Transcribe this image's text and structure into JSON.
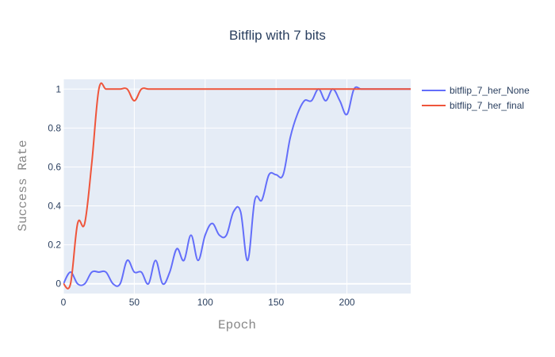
{
  "chart_data": {
    "type": "line",
    "title": "Bitflip with 7 bits",
    "xlabel": "Epoch",
    "ylabel": "Success Rate",
    "xlim": [
      0,
      245
    ],
    "ylim": [
      -0.05,
      1.05
    ],
    "x_ticks": [
      0,
      50,
      100,
      150,
      200
    ],
    "x_tick_labels": [
      "0",
      "50",
      "100",
      "150",
      "200"
    ],
    "y_ticks": [
      0,
      0.2,
      0.4,
      0.6,
      0.8,
      1
    ],
    "y_tick_labels": [
      "0",
      "0.2",
      "0.4",
      "0.6",
      "0.8",
      "1"
    ],
    "grid": true,
    "legend_position": "right",
    "colors": {
      "plot_bg": "#e5ecf6",
      "grid": "#ffffff",
      "text": "#2a3f5f"
    },
    "series": [
      {
        "name": "bitflip_7_her_None",
        "color": "#636efa",
        "x": [
          0,
          5,
          10,
          15,
          20,
          25,
          30,
          35,
          40,
          45,
          50,
          55,
          60,
          65,
          70,
          75,
          80,
          85,
          90,
          95,
          100,
          105,
          110,
          115,
          120,
          125,
          130,
          135,
          140,
          145,
          150,
          155,
          160,
          165,
          170,
          175,
          180,
          185,
          190,
          195,
          200,
          205,
          210,
          215,
          220,
          225,
          230,
          235,
          240,
          245
        ],
        "y": [
          0.0,
          0.06,
          0.0,
          0.0,
          0.06,
          0.06,
          0.06,
          0.0,
          0.0,
          0.12,
          0.06,
          0.06,
          0.0,
          0.12,
          0.0,
          0.06,
          0.18,
          0.12,
          0.25,
          0.12,
          0.25,
          0.31,
          0.25,
          0.25,
          0.37,
          0.37,
          0.12,
          0.43,
          0.43,
          0.56,
          0.56,
          0.56,
          0.75,
          0.87,
          0.94,
          0.94,
          1.0,
          0.94,
          1.0,
          0.94,
          0.87,
          1.0,
          1.0,
          1.0,
          1.0,
          1.0,
          1.0,
          1.0,
          1.0,
          1.0
        ]
      },
      {
        "name": "bitflip_7_her_final",
        "color": "#ef553b",
        "x": [
          0,
          5,
          10,
          15,
          20,
          25,
          30,
          35,
          40,
          45,
          50,
          55,
          60,
          65,
          70,
          75,
          80,
          85,
          90,
          95,
          100,
          105,
          110,
          115,
          120,
          125,
          130,
          135,
          140,
          145,
          150,
          155,
          160,
          165,
          170,
          175,
          180,
          185,
          190,
          195,
          200,
          205,
          210,
          215,
          220,
          225,
          230,
          235,
          240,
          245
        ],
        "y": [
          0.0,
          0.0,
          0.31,
          0.31,
          0.62,
          1.0,
          1.0,
          1.0,
          1.0,
          1.0,
          0.94,
          1.0,
          1.0,
          1.0,
          1.0,
          1.0,
          1.0,
          1.0,
          1.0,
          1.0,
          1.0,
          1.0,
          1.0,
          1.0,
          1.0,
          1.0,
          1.0,
          1.0,
          1.0,
          1.0,
          1.0,
          1.0,
          1.0,
          1.0,
          1.0,
          1.0,
          1.0,
          1.0,
          1.0,
          1.0,
          1.0,
          1.0,
          1.0,
          1.0,
          1.0,
          1.0,
          1.0,
          1.0,
          1.0,
          1.0
        ]
      }
    ]
  }
}
